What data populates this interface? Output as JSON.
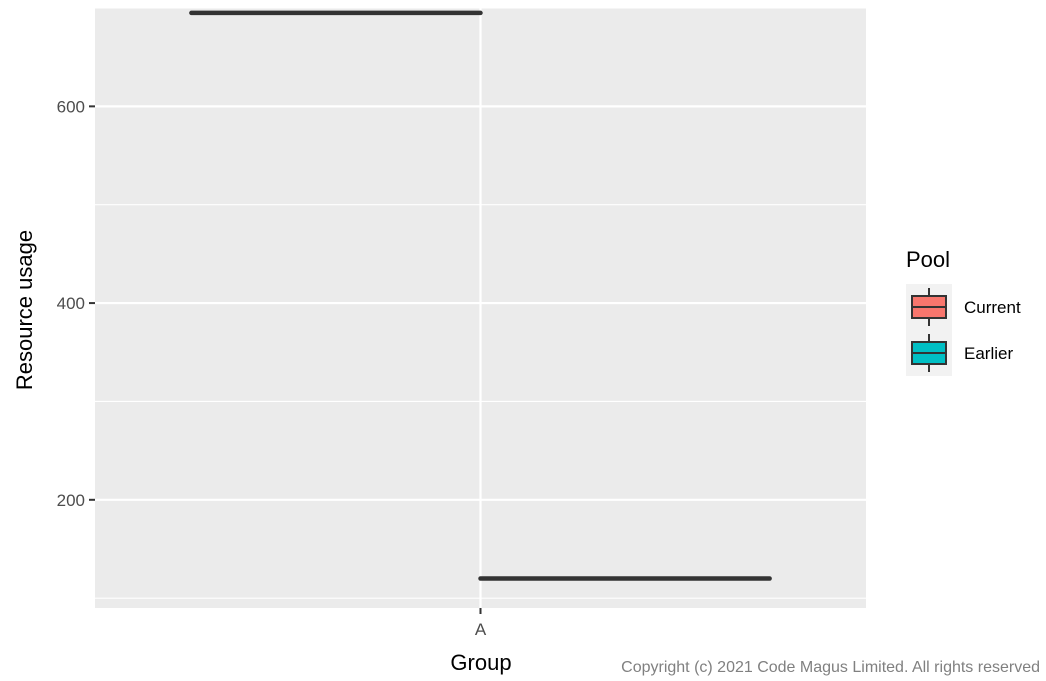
{
  "chart_data": {
    "type": "boxplot",
    "categories": [
      "A"
    ],
    "xlabel": "Group",
    "ylabel": "Resource usage",
    "ylim": [
      90,
      700
    ],
    "y_ticks": [
      200,
      400,
      600
    ],
    "grid": true,
    "legend": {
      "title": "Pool",
      "placement": "right",
      "entries": [
        {
          "name": "Current",
          "color": "#F8766D"
        },
        {
          "name": "Earlier",
          "color": "#00BFC4"
        }
      ]
    },
    "series": [
      {
        "name": "Current",
        "category": "A",
        "min": 695,
        "q1": 695,
        "median": 695,
        "q3": 695,
        "max": 695,
        "color": "#F8766D"
      },
      {
        "name": "Earlier",
        "category": "A",
        "min": 119,
        "q1": 120,
        "median": 120,
        "q3": 120,
        "max": 121,
        "color": "#00BFC4"
      }
    ]
  },
  "caption": "Copyright (c) 2021 Code Magus Limited. All rights reserved",
  "colors": {
    "panel": "#EBEBEB",
    "grid": "#FFFFFF",
    "box_outline": "#333333",
    "tick": "#333333"
  }
}
